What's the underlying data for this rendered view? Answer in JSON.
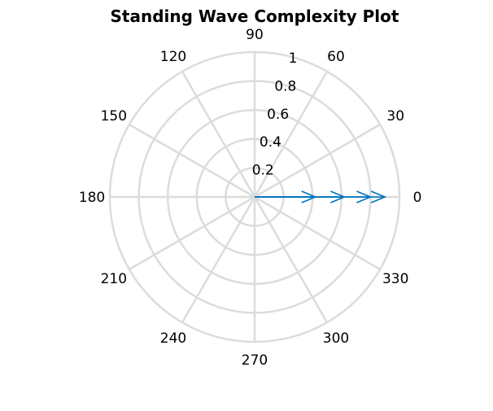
{
  "chart_data": {
    "type": "polar-compass",
    "title": "Standing Wave Complexity Plot",
    "angle_ticks": [
      "0",
      "30",
      "60",
      "90",
      "120",
      "150",
      "180",
      "210",
      "240",
      "270",
      "300",
      "330"
    ],
    "angle_tick_values": [
      0,
      30,
      60,
      90,
      120,
      150,
      180,
      210,
      240,
      270,
      300,
      330
    ],
    "radial_ticks": [
      "0.2",
      "0.4",
      "0.6",
      "0.8",
      "1"
    ],
    "radial_tick_values": [
      0.2,
      0.4,
      0.6,
      0.8,
      1.0
    ],
    "rlim": [
      0,
      1
    ],
    "grid": true,
    "series": [
      {
        "color": "#0072bd",
        "vectors": [
          {
            "angle": 0,
            "magnitude": 0.42
          },
          {
            "angle": 0,
            "magnitude": 0.62
          },
          {
            "angle": 0,
            "magnitude": 0.8
          },
          {
            "angle": 0,
            "magnitude": 0.9
          }
        ]
      }
    ],
    "grid_color": "#dcdcdc"
  }
}
